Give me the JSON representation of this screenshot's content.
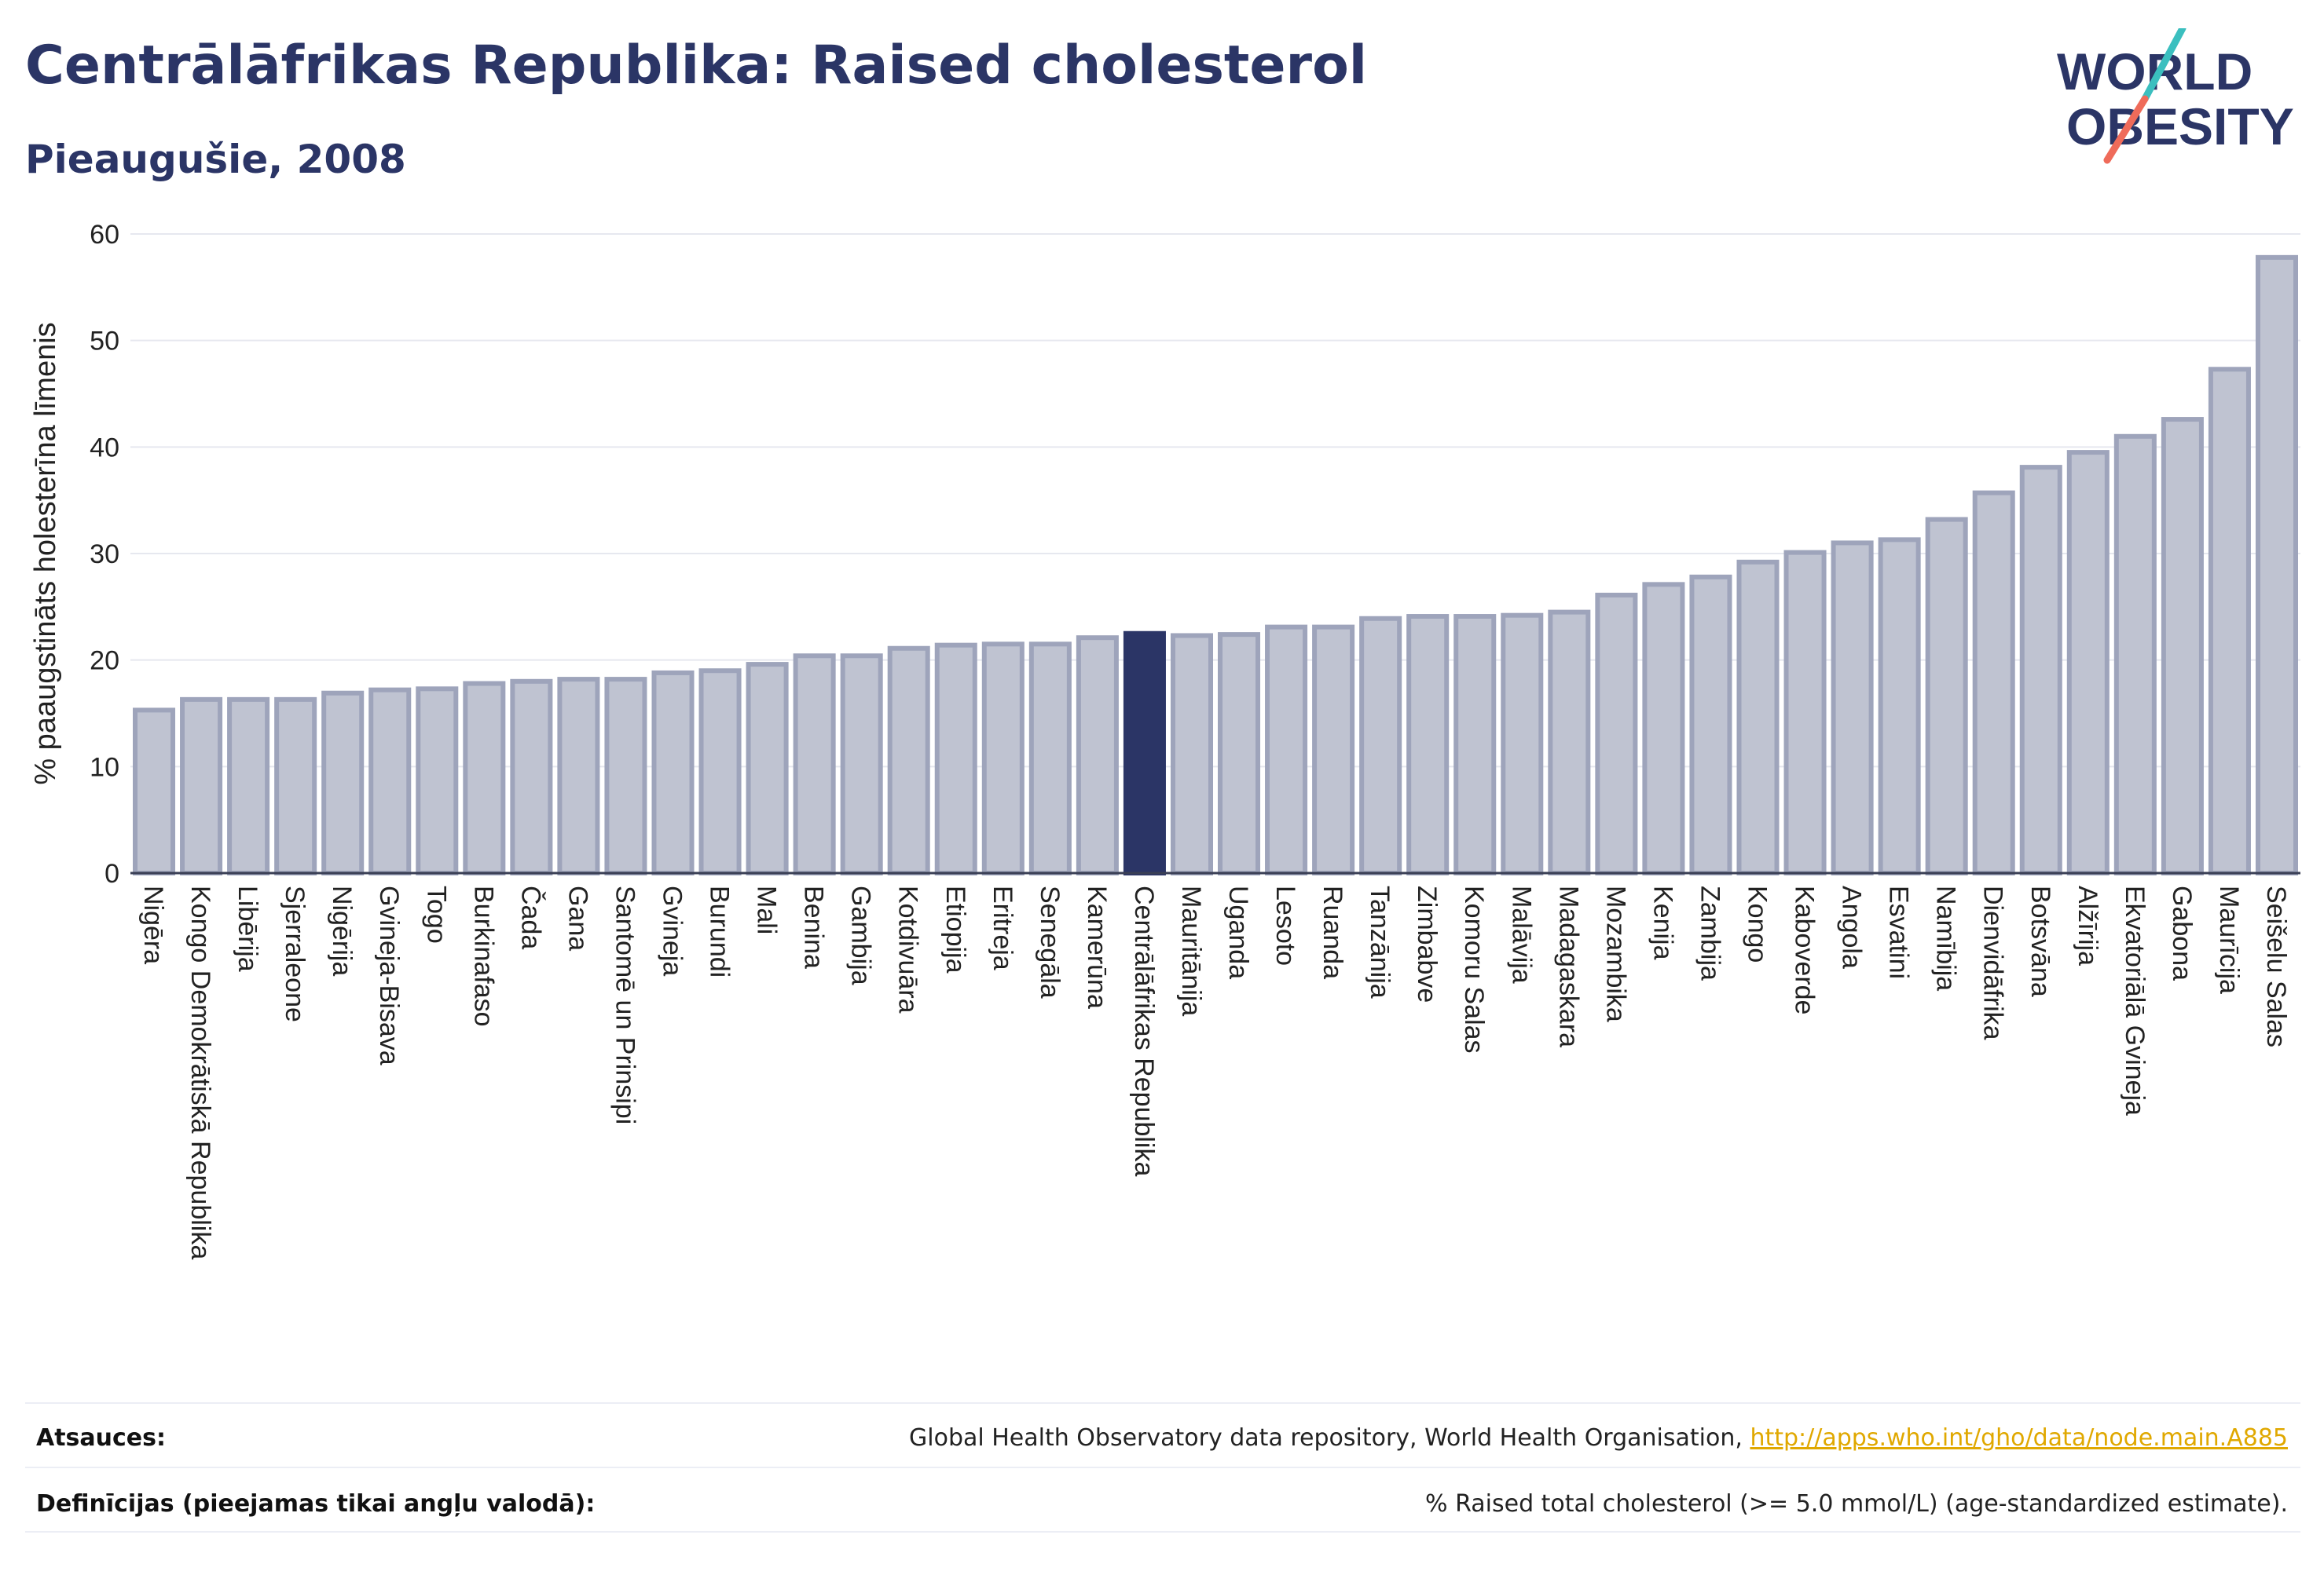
{
  "header": {
    "title": "Centrālāfrikas Republika: Raised cholesterol",
    "subtitle": "Pieaugušie, 2008"
  },
  "logo": {
    "line1": "WORLD",
    "line2": "OBESITY",
    "colors": {
      "text": "#2b3566",
      "slash_teal": "#3bbfbf",
      "slash_coral": "#ef6b5a"
    }
  },
  "colors": {
    "bar_fill": "#bfc3d1",
    "bar_stroke": "#9ea4bb",
    "highlight_fill": "#2b3566",
    "axis_text": "#222222",
    "grid": "#e6e8ef"
  },
  "chart_data": {
    "type": "bar",
    "ylabel": "% paaugstināts holesterīna līmenis",
    "ylim": [
      0,
      60
    ],
    "yticks": [
      0,
      10,
      20,
      30,
      40,
      50,
      60
    ],
    "grid": true,
    "highlight": "Centrālāfrikas Republika",
    "categories": [
      "Nigēra",
      "Kongo Demokrātiskā Republika",
      "Libērija",
      "Sjerraleone",
      "Nigērija",
      "Gvineja-Bisava",
      "Togo",
      "Burkinafaso",
      "Čada",
      "Gana",
      "Santomē un Prinsipi",
      "Gvineja",
      "Burundi",
      "Mali",
      "Benina",
      "Gambija",
      "Kotdivuāra",
      "Etiopija",
      "Eritreja",
      "Senegāla",
      "Kamerūna",
      "Centrālāfrikas Republika",
      "Mauritānija",
      "Uganda",
      "Lesoto",
      "Ruanda",
      "Tanzānija",
      "Zimbabve",
      "Komoru Salas",
      "Malāvija",
      "Madagaskara",
      "Mozambika",
      "Kenija",
      "Zambija",
      "Kongo",
      "Kaboverde",
      "Angola",
      "Esvatini",
      "Namībija",
      "Dienvidāfrika",
      "Botsvāna",
      "Alžīrija",
      "Ekvatoriālā Gvineja",
      "Gabona",
      "Maurīcija",
      "Seišelu Salas"
    ],
    "values": [
      15.3,
      16.3,
      16.3,
      16.3,
      16.9,
      17.2,
      17.3,
      17.8,
      18.0,
      18.2,
      18.2,
      18.8,
      19.0,
      19.6,
      20.4,
      20.4,
      21.1,
      21.4,
      21.5,
      21.5,
      22.1,
      22.5,
      22.3,
      22.4,
      23.1,
      23.1,
      23.9,
      24.1,
      24.1,
      24.2,
      24.5,
      26.1,
      27.1,
      27.8,
      29.2,
      30.1,
      31.0,
      31.3,
      33.2,
      35.7,
      38.1,
      39.5,
      41.0,
      42.6,
      47.3,
      57.8
    ]
  },
  "footer": {
    "sources_label": "Atsauces:",
    "sources_text": "Global Health Observatory data repository, World Health Organisation, ",
    "sources_link": "http://apps.who.int/gho/data/node.main.A885",
    "definitions_label": "Definīcijas (pieejamas tikai angļu valodā):",
    "definitions_text": "% Raised total cholesterol (>= 5.0 mmol/L) (age-standardized estimate)."
  }
}
